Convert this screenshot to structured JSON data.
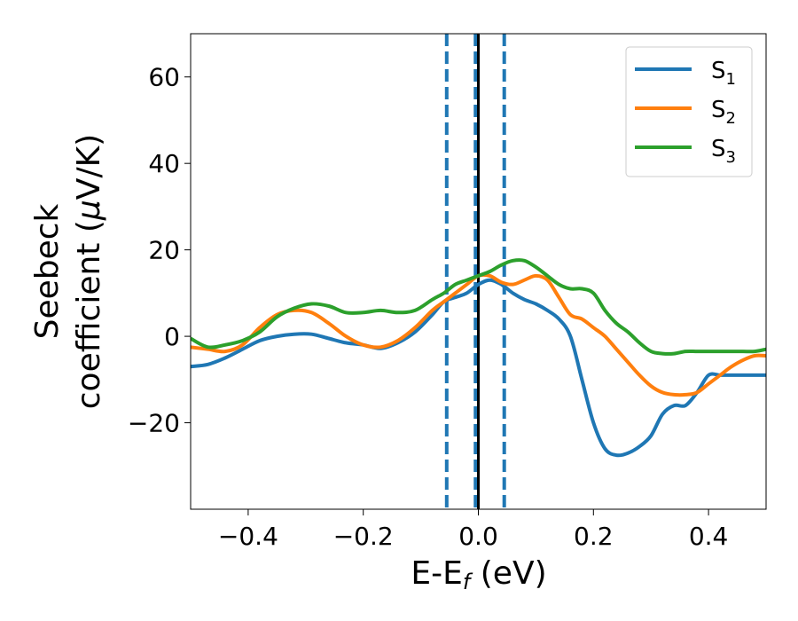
{
  "chart_data": {
    "type": "line",
    "title": "",
    "xlabel": {
      "base": "E-E",
      "sub": "f",
      "rest": " (eV)"
    },
    "ylabel": {
      "line1": "Seebeck",
      "line2_prefix": "coefficient  (",
      "mu": "μ",
      "line2_suffix": "V/K)"
    },
    "xlim": [
      -0.5,
      0.5
    ],
    "ylim": [
      -40,
      70
    ],
    "xticks": [
      -0.4,
      -0.2,
      0.0,
      0.2,
      0.4
    ],
    "xtick_labels": [
      "−0.4",
      "−0.2",
      "0.0",
      "0.2",
      "0.4"
    ],
    "yticks": [
      -20,
      0,
      20,
      40,
      60
    ],
    "ytick_labels": [
      "−20",
      "0",
      "20",
      "40",
      "60"
    ],
    "grid": false,
    "legend_position": "top-right",
    "vertical_lines": [
      {
        "x": -0.055,
        "style": "dashed",
        "color": "#1f77b4"
      },
      {
        "x": -0.005,
        "style": "dashed",
        "color": "#1f77b4"
      },
      {
        "x": 0.045,
        "style": "dashed",
        "color": "#1f77b4"
      },
      {
        "x": 0.0,
        "style": "solid",
        "color": "#000000"
      }
    ],
    "series": [
      {
        "name": "S1",
        "name_base": "S",
        "name_sub": "1",
        "color": "#1f77b4",
        "x": [
          -0.5,
          -0.47,
          -0.44,
          -0.41,
          -0.38,
          -0.35,
          -0.32,
          -0.29,
          -0.26,
          -0.23,
          -0.2,
          -0.17,
          -0.14,
          -0.11,
          -0.08,
          -0.06,
          -0.04,
          -0.02,
          0.0,
          0.02,
          0.04,
          0.06,
          0.08,
          0.1,
          0.12,
          0.14,
          0.16,
          0.18,
          0.2,
          0.22,
          0.24,
          0.26,
          0.28,
          0.3,
          0.32,
          0.34,
          0.36,
          0.38,
          0.4,
          0.42,
          0.44,
          0.46,
          0.48,
          0.5
        ],
        "y": [
          -7,
          -6.5,
          -5,
          -3,
          -1,
          0,
          0.5,
          0.5,
          -0.5,
          -1.5,
          -2,
          -2.8,
          -1.5,
          1,
          5,
          8,
          9,
          10,
          12,
          13,
          12,
          10,
          8.5,
          7.5,
          6,
          4,
          0,
          -10,
          -20,
          -26,
          -27.5,
          -27,
          -25.5,
          -23,
          -18,
          -16,
          -16,
          -13,
          -9,
          -9,
          -9,
          -9,
          -9,
          -9
        ]
      },
      {
        "name": "S2",
        "name_base": "S",
        "name_sub": "2",
        "color": "#ff7f0e",
        "x": [
          -0.5,
          -0.47,
          -0.44,
          -0.41,
          -0.38,
          -0.35,
          -0.32,
          -0.29,
          -0.26,
          -0.23,
          -0.2,
          -0.17,
          -0.14,
          -0.11,
          -0.08,
          -0.06,
          -0.04,
          -0.02,
          0.0,
          0.02,
          0.04,
          0.06,
          0.08,
          0.1,
          0.12,
          0.14,
          0.16,
          0.18,
          0.2,
          0.22,
          0.24,
          0.26,
          0.28,
          0.3,
          0.32,
          0.34,
          0.36,
          0.38,
          0.4,
          0.42,
          0.44,
          0.46,
          0.48,
          0.5
        ],
        "y": [
          -2.5,
          -3,
          -3.5,
          -2,
          2,
          5,
          6,
          5.5,
          3,
          0,
          -2,
          -2.5,
          -1,
          2,
          6,
          8,
          10,
          12,
          14,
          14,
          12.5,
          12,
          13,
          14,
          13,
          9,
          5,
          4,
          2,
          0,
          -3,
          -6,
          -9,
          -11.5,
          -13,
          -13.5,
          -13.5,
          -13,
          -11,
          -9,
          -7,
          -5.5,
          -4.5,
          -4.5
        ]
      },
      {
        "name": "S3",
        "name_base": "S",
        "name_sub": "3",
        "color": "#2ca02c",
        "x": [
          -0.5,
          -0.47,
          -0.44,
          -0.41,
          -0.38,
          -0.35,
          -0.32,
          -0.29,
          -0.26,
          -0.23,
          -0.2,
          -0.17,
          -0.14,
          -0.11,
          -0.08,
          -0.06,
          -0.04,
          -0.02,
          0.0,
          0.02,
          0.04,
          0.06,
          0.08,
          0.1,
          0.12,
          0.14,
          0.16,
          0.18,
          0.2,
          0.22,
          0.24,
          0.26,
          0.28,
          0.3,
          0.32,
          0.34,
          0.36,
          0.38,
          0.4,
          0.42,
          0.44,
          0.46,
          0.48,
          0.5
        ],
        "y": [
          -0.5,
          -2.5,
          -2,
          -1,
          1,
          4.5,
          6.5,
          7.5,
          7,
          5.5,
          5.5,
          6,
          5.5,
          6,
          8.5,
          10,
          12,
          13,
          14,
          15,
          16.5,
          17.5,
          17.5,
          16,
          14,
          12,
          11,
          11,
          10,
          6,
          3,
          1,
          -1.5,
          -3.5,
          -4,
          -4,
          -3.5,
          -3.5,
          -3.5,
          -3.5,
          -3.5,
          -3.5,
          -3.5,
          -3
        ]
      }
    ]
  }
}
